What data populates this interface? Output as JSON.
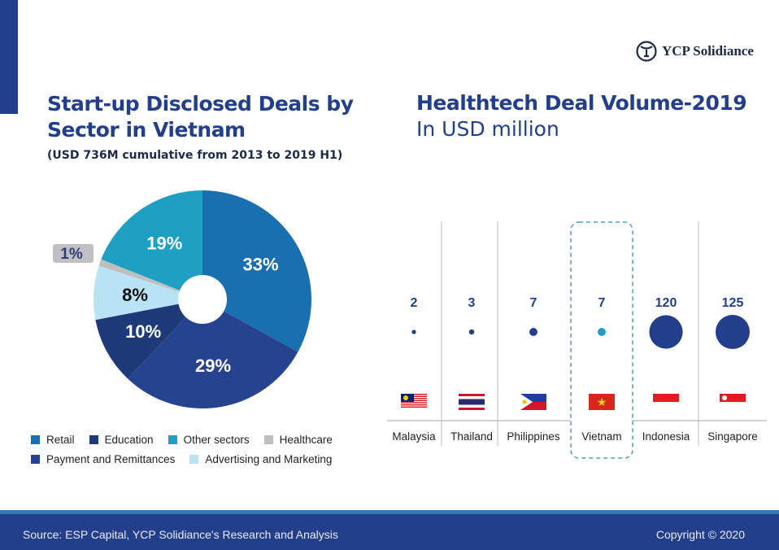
{
  "logo": {
    "text": "YCP Solidiance"
  },
  "colors": {
    "brand": "#233f8c",
    "highlight": "#1ea0c5"
  },
  "chart_data": [
    {
      "type": "pie",
      "title": "Start-up Disclosed Deals by Sector in Vietnam",
      "subtitle": "(USD 736M cumulative from 2013 to 2019 H1)",
      "legend_position": "bottom",
      "slices": [
        {
          "name": "Retail",
          "value": 33,
          "label": "33%",
          "color": "#1a6fb0"
        },
        {
          "name": "Payment and Remittances",
          "value": 29,
          "label": "29%",
          "color": "#27438f"
        },
        {
          "name": "Education",
          "value": 10,
          "label": "10%",
          "color": "#1f3a78"
        },
        {
          "name": "Advertising and Marketing",
          "value": 8,
          "label": "8%",
          "color": "#b9e2f5"
        },
        {
          "name": "Healthcare",
          "value": 1,
          "label": "1%",
          "color": "#bfbfbf"
        },
        {
          "name": "Other sectors",
          "value": 19,
          "label": "19%",
          "color": "#1ea0c5"
        }
      ],
      "legend_order": [
        "Retail",
        "Education",
        "Other sectors",
        "Healthcare",
        "Payment and Remittances",
        "Advertising and Marketing"
      ]
    },
    {
      "type": "scatter",
      "title": "Healthtech Deal Volume-2019",
      "subtitle": "In USD million",
      "categories": [
        "Malaysia",
        "Thailand",
        "Philippines",
        "Vietnam",
        "Indonesia",
        "Singapore"
      ],
      "values": [
        2,
        3,
        7,
        7,
        120,
        125
      ],
      "highlight": "Vietnam"
    }
  ],
  "footer": {
    "source": "Source: ESP Capital, YCP Solidiance's Research and Analysis",
    "copyright": "Copyright © 2020"
  }
}
